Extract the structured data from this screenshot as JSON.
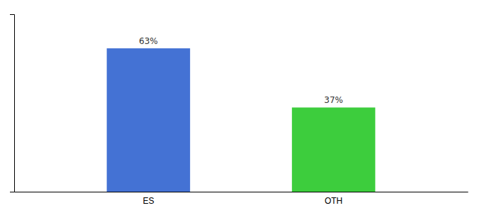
{
  "chart_data": {
    "type": "bar",
    "categories": [
      "ES",
      "OTH"
    ],
    "values": [
      63,
      37
    ],
    "value_labels": [
      "63%",
      "37%"
    ],
    "colors": [
      "#4472d4",
      "#3dcd3d"
    ],
    "ylim": [
      0,
      78
    ],
    "data_labels": true,
    "tick_labels": "x",
    "grid": false
  }
}
